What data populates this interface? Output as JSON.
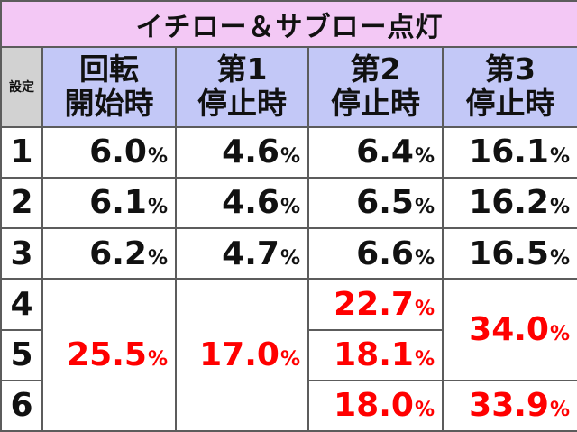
{
  "title": "イチロー＆サブロー点灯",
  "header": {
    "setting": "設定",
    "columns": [
      {
        "line1": "回転",
        "line2": "開始時"
      },
      {
        "line1": "第1",
        "line2": "停止時"
      },
      {
        "line1": "第2",
        "line2": "停止時"
      },
      {
        "line1": "第3",
        "line2": "停止時"
      }
    ]
  },
  "settings": [
    "1",
    "2",
    "3",
    "4",
    "5",
    "6"
  ],
  "percent_sign": "%",
  "values": {
    "spin_start": [
      "6.0",
      "6.1",
      "6.2",
      "25.5"
    ],
    "stop1": [
      "4.6",
      "4.6",
      "4.7",
      "17.0"
    ],
    "stop2": [
      "6.4",
      "6.5",
      "6.6",
      "22.7",
      "18.1",
      "18.0"
    ],
    "stop3": [
      "16.1",
      "16.2",
      "16.5",
      "34.0",
      "33.9"
    ]
  },
  "highlight_color": "#ff0000",
  "colors": {
    "title_bg": "#f3c8f5",
    "header_bg": "#c3c8f7",
    "setting_header_bg": "#d2d2d2",
    "grid_line": "#5c5c5c"
  }
}
